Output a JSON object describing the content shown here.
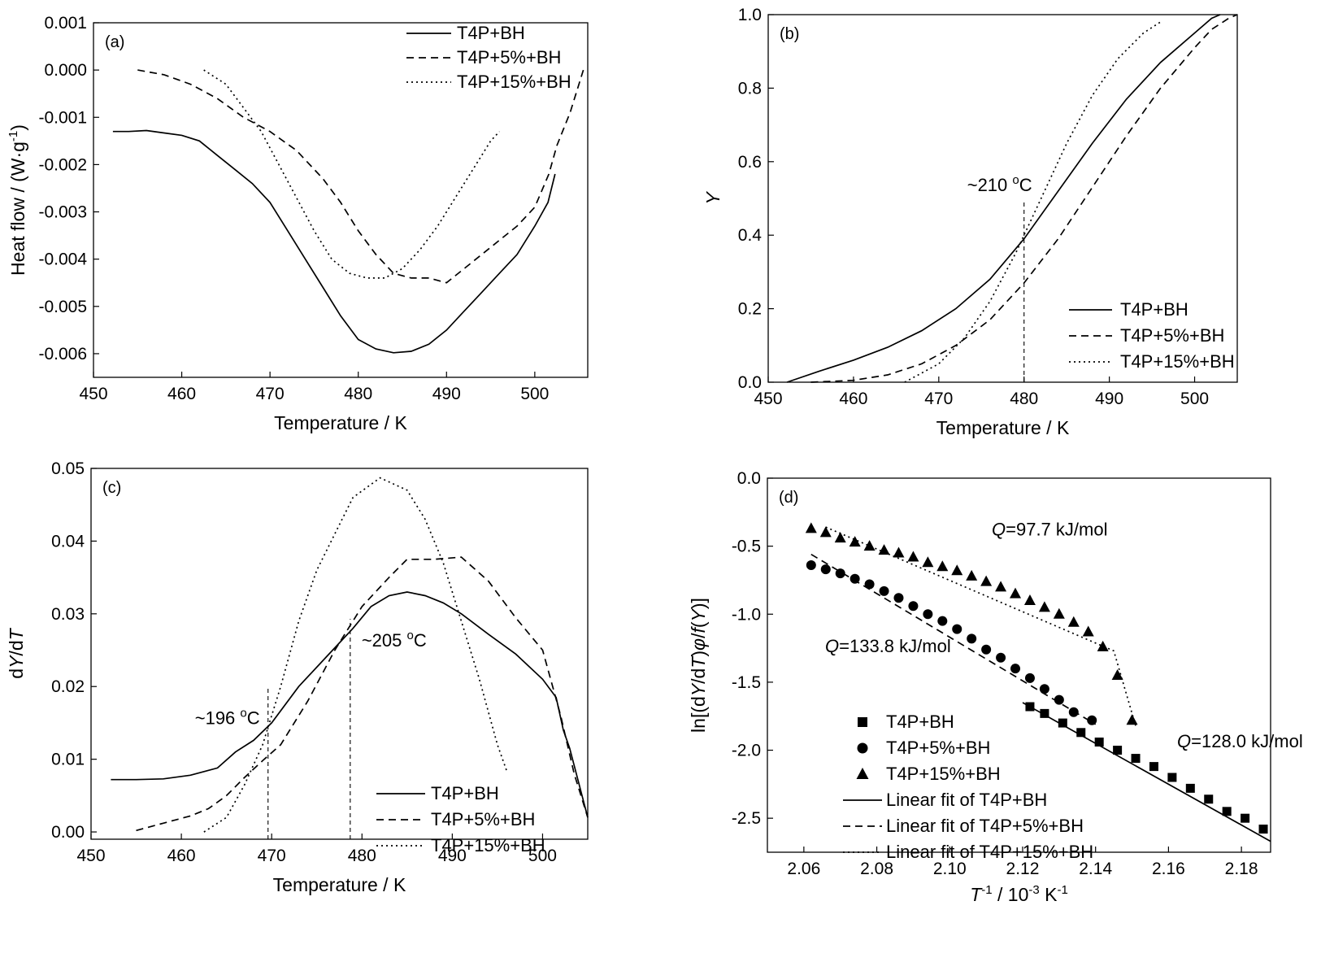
{
  "chart_data": [
    {
      "panel_label": "(a)",
      "type": "line",
      "xlabel": "Temperature / K",
      "ylabel": "Heat flow / (W·g⁻¹)",
      "xlim": [
        450,
        506
      ],
      "ylim": [
        -0.0065,
        0.001
      ],
      "xticks": [
        "450",
        "460",
        "470",
        "480",
        "490",
        "500"
      ],
      "yticks": [
        "0.001",
        "0.000",
        "-0.001",
        "-0.002",
        "-0.003",
        "-0.004",
        "-0.005",
        "-0.006"
      ],
      "legend": "top-right",
      "series": [
        {
          "name": "T4P+BH",
          "style": "solid",
          "points": [
            [
              452.2,
              -0.0013
            ],
            [
              454,
              -0.0013
            ],
            [
              456,
              -0.00128
            ],
            [
              458,
              -0.00133
            ],
            [
              460,
              -0.00138
            ],
            [
              462,
              -0.0015
            ],
            [
              464,
              -0.0018
            ],
            [
              466,
              -0.0021
            ],
            [
              468,
              -0.0024
            ],
            [
              470,
              -0.0028
            ],
            [
              472,
              -0.0034
            ],
            [
              474,
              -0.004
            ],
            [
              476,
              -0.0046
            ],
            [
              478,
              -0.0052
            ],
            [
              480,
              -0.0057
            ],
            [
              482,
              -0.0059
            ],
            [
              484,
              -0.00598
            ],
            [
              486,
              -0.00595
            ],
            [
              488,
              -0.0058
            ],
            [
              490,
              -0.0055
            ],
            [
              492,
              -0.0051
            ],
            [
              494,
              -0.0047
            ],
            [
              496,
              -0.0043
            ],
            [
              498,
              -0.0039
            ],
            [
              500,
              -0.0033
            ],
            [
              501.5,
              -0.0028
            ],
            [
              502.3,
              -0.0022
            ]
          ]
        },
        {
          "name": "T4P+5%+BH",
          "style": "dashed",
          "points": [
            [
              455,
              0.0
            ],
            [
              458,
              -0.0001
            ],
            [
              461,
              -0.0003
            ],
            [
              464,
              -0.0006
            ],
            [
              467,
              -0.001
            ],
            [
              470,
              -0.0013
            ],
            [
              473,
              -0.0017
            ],
            [
              476,
              -0.0023
            ],
            [
              478,
              -0.0028
            ],
            [
              480,
              -0.0034
            ],
            [
              482,
              -0.0039
            ],
            [
              484,
              -0.0043
            ],
            [
              486,
              -0.0044
            ],
            [
              488,
              -0.0044
            ],
            [
              490,
              -0.0045
            ],
            [
              492,
              -0.0042
            ],
            [
              494,
              -0.0039
            ],
            [
              496,
              -0.0036
            ],
            [
              498,
              -0.0033
            ],
            [
              500,
              -0.0029
            ],
            [
              501.6,
              -0.0022
            ],
            [
              502.5,
              -0.0016
            ],
            [
              504,
              -0.0009
            ],
            [
              505.5,
              0.0
            ]
          ]
        },
        {
          "name": "T4P+15%+BH",
          "style": "dotted",
          "points": [
            [
              462.5,
              0.0
            ],
            [
              465,
              -0.0003
            ],
            [
              467,
              -0.0008
            ],
            [
              469,
              -0.0013
            ],
            [
              471,
              -0.002
            ],
            [
              473,
              -0.0027
            ],
            [
              475,
              -0.0034
            ],
            [
              477,
              -0.004
            ],
            [
              479,
              -0.0043
            ],
            [
              481,
              -0.0044
            ],
            [
              483,
              -0.0044
            ],
            [
              485,
              -0.0042
            ],
            [
              487,
              -0.0038
            ],
            [
              489,
              -0.0033
            ],
            [
              491,
              -0.0027
            ],
            [
              493,
              -0.0021
            ],
            [
              495,
              -0.0015
            ],
            [
              496,
              -0.0013
            ]
          ]
        }
      ]
    },
    {
      "panel_label": "(b)",
      "type": "line",
      "xlabel": "Temperature / K",
      "ylabel": "Y",
      "xlim": [
        450,
        505
      ],
      "ylim": [
        0,
        1.0
      ],
      "xticks": [
        "450",
        "460",
        "470",
        "480",
        "490",
        "500"
      ],
      "yticks": [
        "0.0",
        "0.2",
        "0.4",
        "0.6",
        "0.8",
        "1.0"
      ],
      "legend": "bottom-right",
      "annotation": "~210 ºC",
      "annotation_x": 480,
      "series": [
        {
          "name": "T4P+BH",
          "style": "solid",
          "points": [
            [
              452.2,
              0.0
            ],
            [
              456,
              0.03
            ],
            [
              460,
              0.06
            ],
            [
              464,
              0.095
            ],
            [
              468,
              0.14
            ],
            [
              472,
              0.2
            ],
            [
              476,
              0.28
            ],
            [
              480,
              0.39
            ],
            [
              484,
              0.52
            ],
            [
              488,
              0.65
            ],
            [
              492,
              0.77
            ],
            [
              496,
              0.87
            ],
            [
              500,
              0.95
            ],
            [
              502,
              0.99
            ],
            [
              503,
              1.0
            ]
          ]
        },
        {
          "name": "T4P+5%+BH",
          "style": "dashed",
          "points": [
            [
              455,
              0.0
            ],
            [
              460,
              0.005
            ],
            [
              464,
              0.02
            ],
            [
              468,
              0.05
            ],
            [
              472,
              0.1
            ],
            [
              476,
              0.17
            ],
            [
              480,
              0.27
            ],
            [
              484,
              0.39
            ],
            [
              488,
              0.53
            ],
            [
              492,
              0.67
            ],
            [
              496,
              0.8
            ],
            [
              500,
              0.91
            ],
            [
              502,
              0.96
            ],
            [
              504,
              0.99
            ],
            [
              505,
              1.0
            ]
          ]
        },
        {
          "name": "T4P+15%+BH",
          "style": "dotted",
          "points": [
            [
              466,
              0.0
            ],
            [
              470,
              0.05
            ],
            [
              473,
              0.12
            ],
            [
              476,
              0.22
            ],
            [
              479,
              0.35
            ],
            [
              482,
              0.5
            ],
            [
              485,
              0.65
            ],
            [
              488,
              0.78
            ],
            [
              491,
              0.88
            ],
            [
              494,
              0.95
            ],
            [
              496,
              0.98
            ]
          ]
        }
      ]
    },
    {
      "panel_label": "(c)",
      "type": "line",
      "xlabel": "Temperature / K",
      "ylabel": "dY/dT",
      "xlim": [
        450,
        505
      ],
      "ylim": [
        -0.001,
        0.05
      ],
      "xticks": [
        "450",
        "460",
        "470",
        "480",
        "490",
        "500"
      ],
      "yticks": [
        "0.00",
        "0.01",
        "0.02",
        "0.03",
        "0.04",
        "0.05"
      ],
      "legend": "bottom-right",
      "annotations": [
        {
          "text": "~196 ºC",
          "x": 469.6
        },
        {
          "text": "~205 ºC",
          "x": 478.7
        }
      ],
      "series": [
        {
          "name": "T4P+BH",
          "style": "solid",
          "points": [
            [
              452.2,
              0.0072
            ],
            [
              455,
              0.0072
            ],
            [
              458,
              0.0073
            ],
            [
              461,
              0.0078
            ],
            [
              464,
              0.0088
            ],
            [
              466,
              0.011
            ],
            [
              468,
              0.0126
            ],
            [
              470,
              0.015
            ],
            [
              473,
              0.02
            ],
            [
              476,
              0.024
            ],
            [
              479,
              0.028
            ],
            [
              481,
              0.031
            ],
            [
              483,
              0.0325
            ],
            [
              485,
              0.033
            ],
            [
              487,
              0.0325
            ],
            [
              489,
              0.0315
            ],
            [
              491,
              0.03
            ],
            [
              494,
              0.0272
            ],
            [
              497,
              0.0245
            ],
            [
              500,
              0.021
            ],
            [
              501.5,
              0.0185
            ],
            [
              502.3,
              0.014
            ],
            [
              503,
              0.0115
            ],
            [
              505,
              0.002
            ]
          ]
        },
        {
          "name": "T4P+5%+BH",
          "style": "dashed",
          "points": [
            [
              455,
              0.0002
            ],
            [
              458,
              0.0012
            ],
            [
              461,
              0.0022
            ],
            [
              463,
              0.0032
            ],
            [
              465,
              0.005
            ],
            [
              467,
              0.0075
            ],
            [
              469,
              0.0098
            ],
            [
              471,
              0.012
            ],
            [
              474,
              0.018
            ],
            [
              477,
              0.025
            ],
            [
              480,
              0.031
            ],
            [
              483,
              0.035
            ],
            [
              485,
              0.0375
            ],
            [
              488,
              0.0375
            ],
            [
              491,
              0.0378
            ],
            [
              494,
              0.0345
            ],
            [
              497,
              0.0295
            ],
            [
              500,
              0.025
            ],
            [
              502,
              0.016
            ],
            [
              503.5,
              0.008
            ],
            [
              505,
              0.002
            ]
          ]
        },
        {
          "name": "T4P+15%+BH",
          "style": "dotted",
          "points": [
            [
              462.5,
              0.0
            ],
            [
              465,
              0.002
            ],
            [
              467,
              0.0065
            ],
            [
              469,
              0.012
            ],
            [
              471,
              0.02
            ],
            [
              473,
              0.029
            ],
            [
              475,
              0.036
            ],
            [
              477,
              0.041
            ],
            [
              479,
              0.046
            ],
            [
              482,
              0.0487
            ],
            [
              485,
              0.047
            ],
            [
              487,
              0.043
            ],
            [
              489,
              0.037
            ],
            [
              491,
              0.029
            ],
            [
              493,
              0.021
            ],
            [
              495,
              0.012
            ],
            [
              496,
              0.0085
            ]
          ]
        }
      ]
    },
    {
      "panel_label": "(d)",
      "type": "scatter",
      "xlabel": "T⁻¹ / 10⁻³ K⁻¹",
      "ylabel": "ln[(dY/dT)φ/f(Y)]",
      "xlim": [
        2.05,
        2.188
      ],
      "ylim": [
        -2.75,
        0.0
      ],
      "xticks": [
        "2.06",
        "2.08",
        "2.10",
        "2.12",
        "2.14",
        "2.16",
        "2.18"
      ],
      "yticks": [
        "0.0",
        "-0.5",
        "-1.0",
        "-1.5",
        "-2.0",
        "-2.5"
      ],
      "legend": "bottom-left",
      "annotations": [
        {
          "text": "Q=97.7 kJ/mol",
          "series": "T4P+15%+BH"
        },
        {
          "text": "Q=133.8 kJ/mol",
          "series": "T4P+5%+BH"
        },
        {
          "text": "Q=128.0 kJ/mol",
          "series": "T4P+BH"
        }
      ],
      "series": [
        {
          "name": "T4P+BH",
          "marker": "square",
          "x": [
            2.122,
            2.126,
            2.131,
            2.136,
            2.141,
            2.146,
            2.151,
            2.156,
            2.161,
            2.166,
            2.171,
            2.176,
            2.181,
            2.186
          ],
          "y": [
            -1.68,
            -1.73,
            -1.8,
            -1.87,
            -1.94,
            -2.0,
            -2.06,
            -2.12,
            -2.2,
            -2.28,
            -2.36,
            -2.45,
            -2.5,
            -2.58
          ]
        },
        {
          "name": "T4P+5%+BH",
          "marker": "circle",
          "x": [
            2.062,
            2.066,
            2.07,
            2.074,
            2.078,
            2.082,
            2.086,
            2.09,
            2.094,
            2.098,
            2.102,
            2.106,
            2.11,
            2.114,
            2.118,
            2.122,
            2.126,
            2.13,
            2.134,
            2.139
          ],
          "y": [
            -0.64,
            -0.67,
            -0.7,
            -0.74,
            -0.78,
            -0.83,
            -0.88,
            -0.94,
            -1.0,
            -1.05,
            -1.11,
            -1.18,
            -1.26,
            -1.32,
            -1.4,
            -1.47,
            -1.55,
            -1.63,
            -1.72,
            -1.78
          ]
        },
        {
          "name": "T4P+15%+BH",
          "marker": "triangle",
          "x": [
            2.062,
            2.066,
            2.07,
            2.074,
            2.078,
            2.082,
            2.086,
            2.09,
            2.094,
            2.098,
            2.102,
            2.106,
            2.11,
            2.114,
            2.118,
            2.122,
            2.126,
            2.13,
            2.134,
            2.138,
            2.142,
            2.146,
            2.15
          ],
          "y": [
            -0.37,
            -0.4,
            -0.44,
            -0.47,
            -0.5,
            -0.53,
            -0.55,
            -0.58,
            -0.62,
            -0.65,
            -0.68,
            -0.72,
            -0.76,
            -0.8,
            -0.85,
            -0.9,
            -0.95,
            -1.0,
            -1.06,
            -1.13,
            -1.24,
            -1.45,
            -1.78
          ]
        },
        {
          "name": "Linear fit of T4P+BH",
          "style": "solid",
          "points": [
            [
              2.12,
              -1.65
            ],
            [
              2.188,
              -2.67
            ]
          ]
        },
        {
          "name": "Linear fit of T4P+5%+BH",
          "style": "dashed",
          "points": [
            [
              2.062,
              -0.56
            ],
            [
              2.14,
              -1.81
            ]
          ]
        },
        {
          "name": "Linear fit of T4P+15%+BH",
          "style": "dotted",
          "points": [
            [
              2.066,
              -0.36
            ],
            [
              2.145,
              -1.27
            ],
            [
              2.151,
              -1.82
            ]
          ]
        }
      ]
    }
  ]
}
